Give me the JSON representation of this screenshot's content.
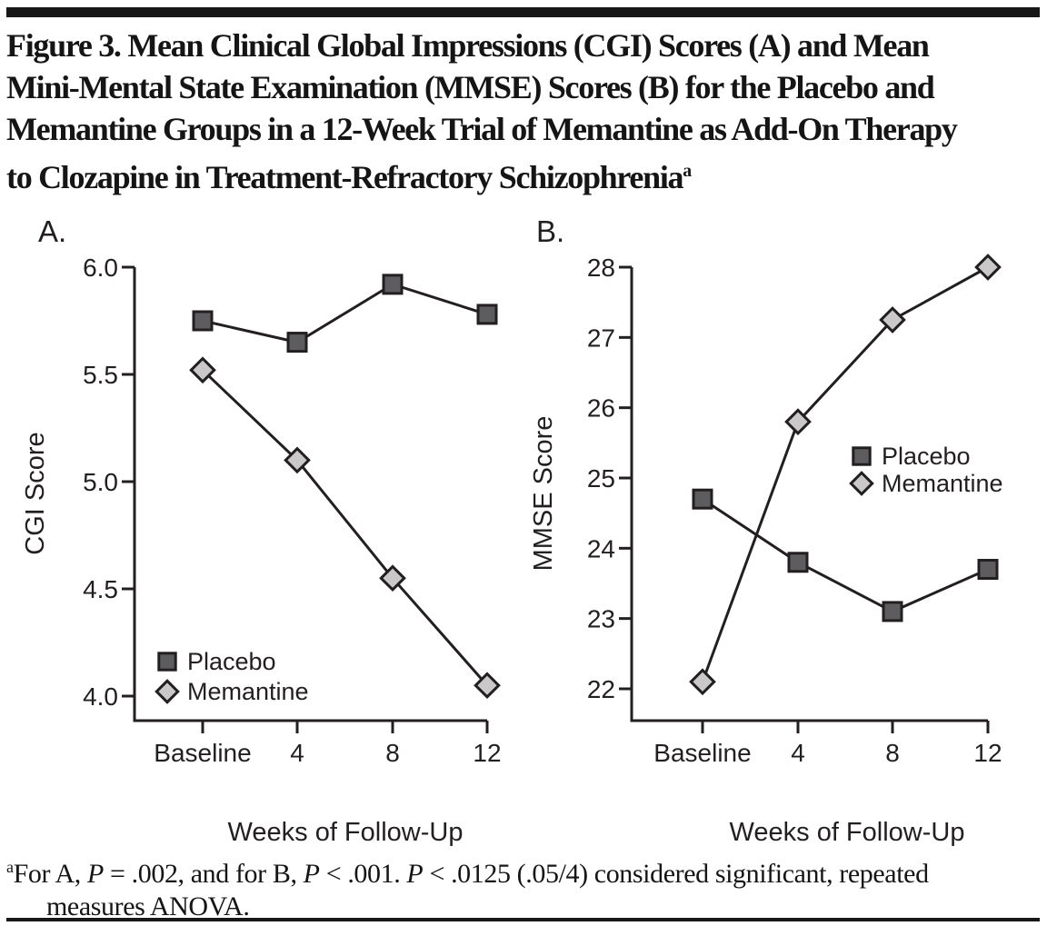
{
  "figure": {
    "title_lines": [
      "Figure 3. Mean Clinical Global Impressions (CGI) Scores (A) and Mean",
      "Mini-Mental State Examination (MMSE) Scores (B) for the Placebo and",
      "Memantine Groups in a 12-Week Trial of Memantine as Add-On Therapy",
      "to Clozapine in Treatment-Refractory Schizophrenia"
    ],
    "title_superscript": "a",
    "footnote": {
      "superscript": "a",
      "segments": [
        {
          "text": "For A, "
        },
        {
          "text": "P",
          "italic": true
        },
        {
          "text": " = .002, and for B, "
        },
        {
          "text": "P",
          "italic": true
        },
        {
          "text": " < .001. "
        },
        {
          "text": "P",
          "italic": true
        },
        {
          "text": " < .0125 (.05/4) considered significant, repeated"
        },
        {
          "break": true
        },
        {
          "text": "measures ANOVA."
        }
      ]
    },
    "ink_color": "#231f20",
    "placebo_fill": "#5d5d5f",
    "memantine_fill": "#c9c9c9"
  },
  "chart_data": [
    {
      "id": "A",
      "panel_label": "A.",
      "type": "line",
      "categories": [
        "Baseline",
        "4",
        "8",
        "12"
      ],
      "series": [
        {
          "name": "Placebo",
          "marker": "square",
          "values": [
            5.75,
            5.65,
            5.92,
            5.78
          ]
        },
        {
          "name": "Memantine",
          "marker": "diamond",
          "values": [
            5.52,
            5.1,
            4.55,
            4.05
          ]
        }
      ],
      "xlabel": "Weeks of Follow-Up",
      "ylabel": "CGI Score",
      "yticks": [
        6.0,
        5.5,
        5.0,
        4.5,
        4.0
      ],
      "ytick_labels": [
        "6.0",
        "5.5",
        "5.0",
        "4.5",
        "4.0"
      ],
      "ylim": [
        3.89,
        6.0
      ],
      "grid": false,
      "legend_position": "inside-bottom-left"
    },
    {
      "id": "B",
      "panel_label": "B.",
      "type": "line",
      "categories": [
        "Baseline",
        "4",
        "8",
        "12"
      ],
      "series": [
        {
          "name": "Placebo",
          "marker": "square",
          "values": [
            24.7,
            23.8,
            23.1,
            23.7
          ]
        },
        {
          "name": "Memantine",
          "marker": "diamond",
          "values": [
            22.1,
            25.8,
            27.25,
            28.0
          ]
        }
      ],
      "xlabel": "Weeks of Follow-Up",
      "ylabel": "MMSE Score",
      "yticks": [
        28,
        27,
        26,
        25,
        24,
        23,
        22
      ],
      "ytick_labels": [
        "28",
        "27",
        "26",
        "25",
        "24",
        "23",
        "22"
      ],
      "ylim": [
        21.55,
        28
      ],
      "grid": false,
      "legend_position": "inside-middle-right"
    }
  ]
}
